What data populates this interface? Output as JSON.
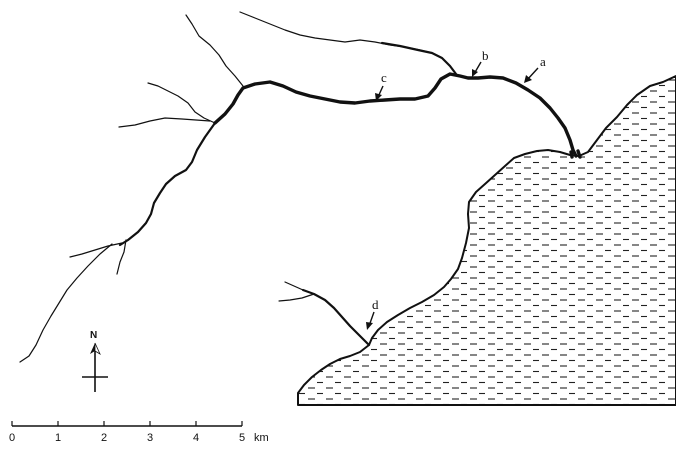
{
  "points": [
    {
      "id": "a",
      "label": "a"
    },
    {
      "id": "b",
      "label": "b"
    },
    {
      "id": "c",
      "label": "c"
    },
    {
      "id": "d",
      "label": "d"
    }
  ],
  "north": {
    "label": "N",
    "icon": "north-arrow-icon"
  },
  "scale_bar": {
    "ticks": [
      "0",
      "1",
      "2",
      "3",
      "4",
      "5"
    ],
    "unit": "km"
  },
  "colors": {
    "ink": "#111111",
    "background": "#ffffff"
  }
}
